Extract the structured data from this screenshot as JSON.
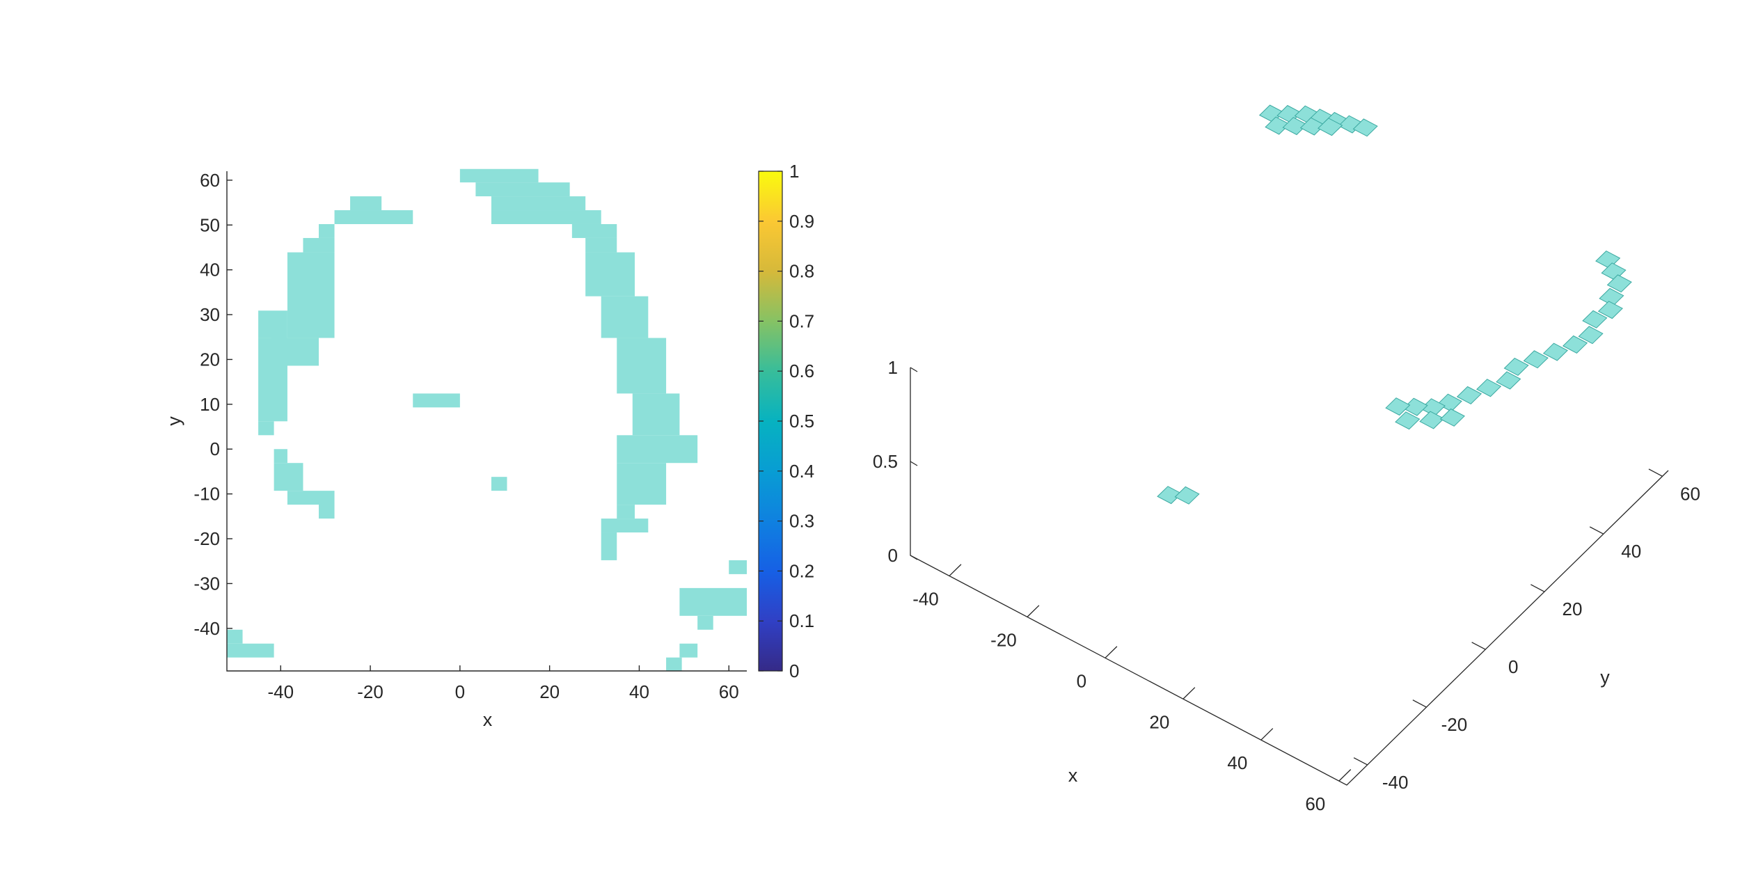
{
  "colors": {
    "cell_fill": "#8de0d9",
    "cell_edge_3d": "#3aa8a0",
    "axis": "#262626",
    "background": "#ffffff"
  },
  "chart_data": [
    {
      "type": "heatmap",
      "title": "",
      "xlabel": "x",
      "ylabel": "y",
      "xlim": [
        -52,
        64
      ],
      "ylim": [
        -49.5,
        62
      ],
      "xticks": [
        -40,
        -20,
        0,
        20,
        40,
        60
      ],
      "yticks": [
        -40,
        -30,
        -20,
        -10,
        0,
        10,
        20,
        30,
        40,
        50,
        60
      ],
      "cell_size": [
        3.5,
        3.1
      ],
      "cell_value": 0.5,
      "colorbar": {
        "colormap": "parula",
        "range": [
          0,
          1
        ],
        "ticks": [
          "0",
          "0.1",
          "0.2",
          "0.3",
          "0.4",
          "0.5",
          "0.6",
          "0.7",
          "0.8",
          "0.9",
          "1"
        ]
      },
      "cells": [
        [
          0,
          59.5,
          17.5,
          62.5
        ],
        [
          3.5,
          56.4,
          24.5,
          59.5
        ],
        [
          7,
          53.3,
          28,
          56.4
        ],
        [
          7,
          50.2,
          31.5,
          53.3
        ],
        [
          -24.5,
          53.3,
          -17.5,
          56.4
        ],
        [
          -28,
          50.2,
          -10.5,
          53.3
        ],
        [
          -31.5,
          47.1,
          -28,
          50.2
        ],
        [
          -35,
          43.9,
          -28,
          47.1
        ],
        [
          25,
          47.1,
          35,
          50.2
        ],
        [
          28,
          43.9,
          35,
          47.1
        ],
        [
          -38.5,
          24.8,
          -28,
          43.9
        ],
        [
          -42,
          18.6,
          -31.5,
          24.8
        ],
        [
          -45,
          24.8,
          -38.5,
          30.9
        ],
        [
          -45,
          6.2,
          -38.5,
          24.8
        ],
        [
          -45,
          3.1,
          -41.5,
          6.2
        ],
        [
          28,
          34.1,
          39,
          43.9
        ],
        [
          31.5,
          24.8,
          42,
          34.1
        ],
        [
          35,
          12.4,
          46,
          24.8
        ],
        [
          38.5,
          3.1,
          49,
          12.4
        ],
        [
          35,
          -3.1,
          53,
          3.1
        ],
        [
          35,
          -12.4,
          46,
          -3.1
        ],
        [
          35,
          -15.5,
          39,
          -12.4
        ],
        [
          31.5,
          -18.6,
          42,
          -15.5
        ],
        [
          31.5,
          -24.8,
          35,
          -18.6
        ],
        [
          -10.5,
          9.3,
          0,
          12.4
        ],
        [
          7,
          -9.3,
          10.5,
          -6.2
        ],
        [
          -41.5,
          -3.1,
          -38.5,
          0
        ],
        [
          -41.5,
          -9.3,
          -35,
          -3.1
        ],
        [
          -38.5,
          -12.4,
          -31.5,
          -9.3
        ],
        [
          -31.5,
          -15.5,
          -28,
          -9.3
        ],
        [
          60,
          -27.9,
          64,
          -24.8
        ],
        [
          49,
          -37.2,
          64,
          -31
        ],
        [
          53,
          -40.3,
          56.5,
          -37.2
        ],
        [
          49,
          -46.5,
          53,
          -43.4
        ],
        [
          46,
          -49.5,
          49.5,
          -46.5
        ],
        [
          -52,
          -43.4,
          -48.5,
          -40.3
        ],
        [
          -52,
          -46.5,
          -41.5,
          -43.4
        ]
      ]
    },
    {
      "type": "surface3d",
      "title": "",
      "xlabel": "x",
      "ylabel": "y",
      "zlabel": "",
      "xlim": [
        -50,
        62
      ],
      "ylim": [
        -47,
        62
      ],
      "zlim": [
        0,
        1
      ],
      "xticks": [
        -40,
        -20,
        0,
        20,
        40,
        60
      ],
      "yticks": [
        -40,
        -20,
        0,
        20,
        40,
        60
      ],
      "zticks": [
        "0",
        "0.5",
        "1"
      ],
      "cell_size": [
        3.5,
        3.5
      ],
      "cells": [
        [
          -33,
          53
        ],
        [
          -30,
          55
        ],
        [
          -27,
          57
        ],
        [
          -24,
          58
        ],
        [
          -21,
          59
        ],
        [
          -18,
          60
        ],
        [
          -15,
          61
        ],
        [
          -30,
          51
        ],
        [
          -27,
          53
        ],
        [
          -24,
          55
        ],
        [
          -21,
          57
        ],
        [
          48,
          60
        ],
        [
          51,
          58
        ],
        [
          54,
          56
        ],
        [
          55,
          52
        ],
        [
          57,
          49
        ],
        [
          56,
          45
        ],
        [
          58,
          41
        ],
        [
          57,
          37
        ],
        [
          55,
          33
        ],
        [
          53,
          29
        ],
        [
          51,
          25
        ],
        [
          52,
          21
        ],
        [
          50,
          17
        ],
        [
          48,
          13
        ],
        [
          46,
          9
        ],
        [
          44,
          6
        ],
        [
          41,
          4
        ],
        [
          38,
          2
        ],
        [
          42,
          0
        ],
        [
          46,
          3
        ],
        [
          49,
          6
        ],
        [
          15,
          -45
        ],
        [
          18,
          -43
        ]
      ]
    }
  ]
}
